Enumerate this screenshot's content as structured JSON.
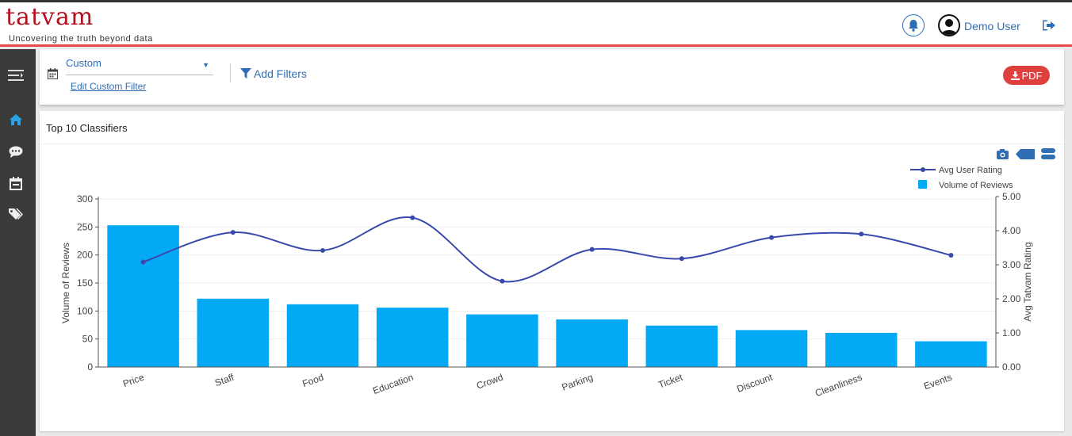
{
  "header": {
    "logo_text": "tatvam",
    "tagline": "Uncovering the truth beyond data",
    "user_name": "Demo User"
  },
  "sidebar": {
    "items": [
      {
        "icon": "menu-toggle-icon"
      },
      {
        "icon": "home-icon"
      },
      {
        "icon": "chat-icon"
      },
      {
        "icon": "calendar-icon"
      },
      {
        "icon": "tags-icon"
      }
    ]
  },
  "filters": {
    "date_range_value": "Custom",
    "edit_link": "Edit Custom Filter",
    "add_filters_label": "Add Filters",
    "pdf_label": "PDF"
  },
  "panel": {
    "title": "Top 10 Classifiers"
  },
  "colors": {
    "bar": "#03a9f4",
    "line": "#3949ab",
    "accent": "#2f6db5",
    "header_border": "#e64a4a",
    "pdf": "#e0403d"
  },
  "chart_data": {
    "type": "bar",
    "categories": [
      "Price",
      "Staff",
      "Food",
      "Education",
      "Crowd",
      "Parking",
      "Ticket",
      "Discount",
      "Cleanliness",
      "Events"
    ],
    "series": [
      {
        "name": "Volume of Reviews",
        "type": "bar",
        "axis": "left",
        "values": [
          253,
          122,
          112,
          106,
          94,
          85,
          74,
          66,
          61,
          46
        ]
      },
      {
        "name": "Avg User Rating",
        "type": "line",
        "axis": "right",
        "values": [
          3.08,
          3.95,
          3.42,
          4.38,
          2.52,
          3.45,
          3.18,
          3.8,
          3.9,
          3.28
        ]
      }
    ],
    "ylabel": "Volume of Reviews",
    "y2label": "Avg Tatvam Rating",
    "ylim": [
      0,
      300
    ],
    "y2lim": [
      0,
      5
    ],
    "yticks": [
      "0",
      "50",
      "100",
      "150",
      "200",
      "250",
      "300"
    ],
    "y2ticks": [
      "0.00",
      "1.00",
      "2.00",
      "3.00",
      "4.00",
      "5.00"
    ],
    "legend_position": "top-right",
    "grid": true
  }
}
